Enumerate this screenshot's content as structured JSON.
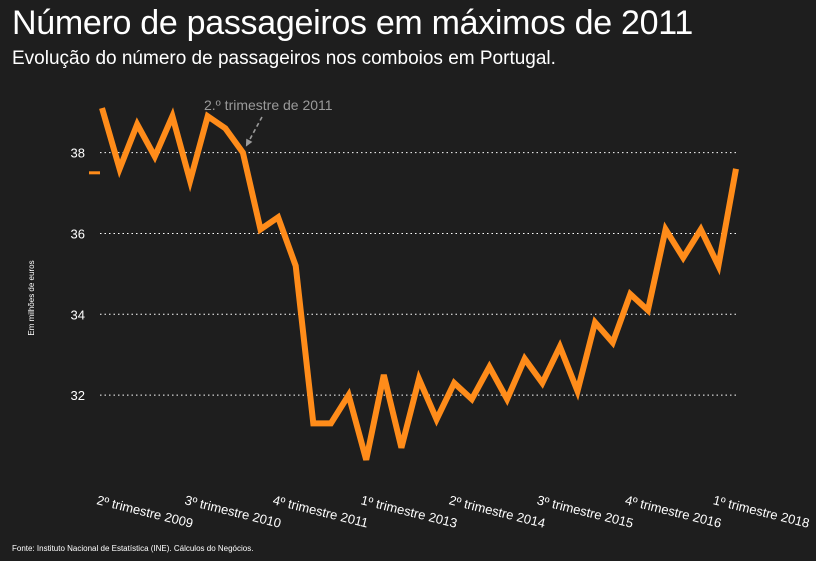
{
  "chart_data": {
    "type": "line",
    "title": "Número de passageiros em máximos de 2011",
    "subtitle": "Evolução do número de passageiros nos comboios em Portugal.",
    "ylabel": "Em milhões de euros",
    "source": "Fonte: Instituto Nacional de Estatística (INE). Cálculos do Negócios.",
    "annotation": {
      "text": "2.º trimestre de 2011",
      "x_index": 8
    },
    "reference_marker": {
      "y": 37.5
    },
    "ylim": [
      30.0,
      39.4
    ],
    "y_ticks": [
      32,
      34,
      36,
      38
    ],
    "grid": "horizontal-dotted",
    "x_tick_labels": [
      {
        "label": "2º trimestre 2009",
        "index": 0
      },
      {
        "label": "3º trimestre 2010",
        "index": 5
      },
      {
        "label": "4º trimestre 2011",
        "index": 10
      },
      {
        "label": "1º trimestre 2013",
        "index": 15
      },
      {
        "label": "2º trimestre 2014",
        "index": 20
      },
      {
        "label": "3º trimestre 2015",
        "index": 25
      },
      {
        "label": "4º trimestre 2016",
        "index": 30
      },
      {
        "label": "1º trimestre 2018",
        "index": 35
      }
    ],
    "series": [
      {
        "color": "#ff8c1a",
        "values": [
          39.1,
          37.6,
          38.7,
          37.9,
          38.9,
          37.3,
          38.9,
          38.6,
          38.0,
          36.1,
          36.4,
          35.2,
          31.3,
          31.3,
          32.0,
          30.4,
          32.5,
          30.7,
          32.4,
          31.4,
          32.3,
          31.9,
          32.7,
          31.9,
          32.9,
          32.3,
          33.2,
          32.1,
          33.8,
          33.3,
          34.5,
          34.1,
          36.1,
          35.4,
          36.1,
          35.2,
          37.6
        ]
      }
    ]
  }
}
